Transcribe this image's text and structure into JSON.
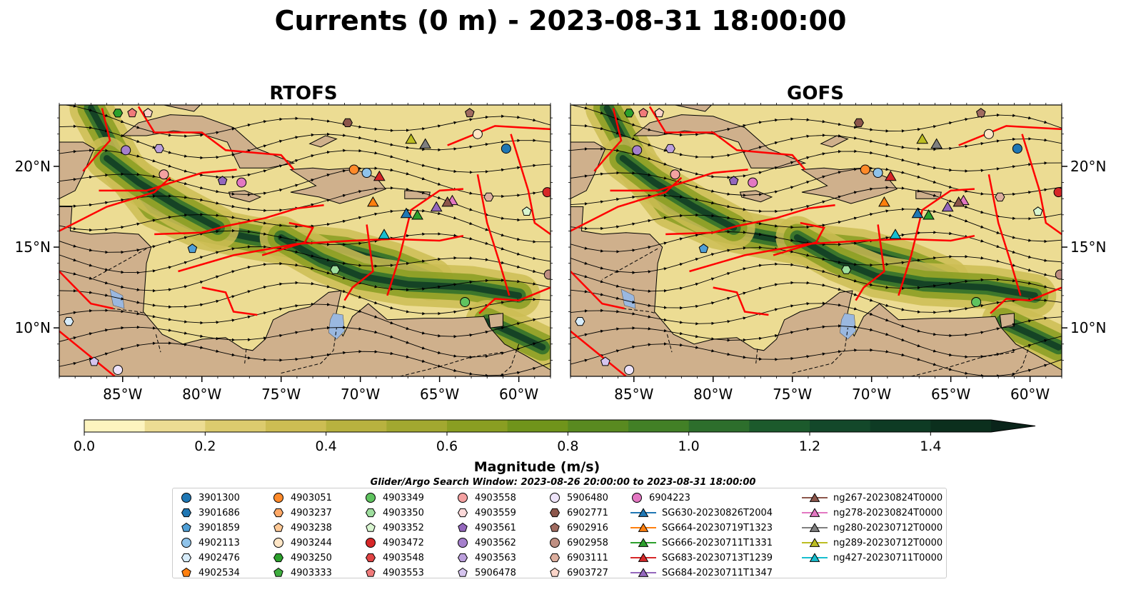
{
  "figure": {
    "title": "Currents (0 m) - 2023-08-31 18:00:00",
    "search_window": "Glider/Argo Search Window: 2023-08-26 20:00:00 to 2023-08-31 18:00:00"
  },
  "colors": {
    "land": "#cfb08c",
    "lake": "#9ab8e0",
    "eez": "#ff0000",
    "colormap": [
      "#fdf4bf",
      "#ecdc93",
      "#dccb6e",
      "#cdbd53",
      "#b8b23f",
      "#a2a830",
      "#8a9e22",
      "#70941b",
      "#598a20",
      "#428026",
      "#2d6e2c",
      "#1c5a2c",
      "#13482a",
      "#0e3b24",
      "#0b2f1d",
      "#0a241a"
    ]
  },
  "chart_data": {
    "type": "heatmap",
    "variable": "Magnitude (m/s)",
    "depth_m": 0,
    "time": "2023-08-31 18:00:00",
    "panels": [
      {
        "name": "RTOFS",
        "lon_range": [
          -89,
          -58
        ],
        "lat_range": [
          7,
          23.8
        ]
      },
      {
        "name": "GOFS",
        "lon_range": [
          -89,
          -58
        ],
        "lat_range": [
          7,
          23.8
        ]
      }
    ],
    "x_ticks": [
      "85°W",
      "80°W",
      "75°W",
      "70°W",
      "65°W",
      "60°W"
    ],
    "x_tick_values": [
      -85,
      -80,
      -75,
      -70,
      -65,
      -60
    ],
    "y_ticks": [
      "10°N",
      "15°N",
      "20°N"
    ],
    "y_tick_values": [
      10,
      15,
      20
    ],
    "colorbar": {
      "label": "Magnitude (m/s)",
      "range": [
        0,
        1.5
      ],
      "step": 0.1,
      "extend": "max",
      "tick_values": [
        0.0,
        0.2,
        0.4,
        0.6,
        0.8,
        1.0,
        1.2,
        1.4
      ],
      "tick_labels": [
        "0.0",
        "0.2",
        "0.4",
        "0.6",
        "0.8",
        "1.0",
        "1.2",
        "1.4"
      ]
    },
    "legend": {
      "columns": [
        [
          {
            "label": "3901300",
            "marker": "circle",
            "color": "#1f77b4"
          },
          {
            "label": "3901686",
            "marker": "hexagon",
            "color": "#1f77b4"
          },
          {
            "label": "3901859",
            "marker": "pentagon",
            "color": "#4f9fd6"
          },
          {
            "label": "4902113",
            "marker": "circle",
            "color": "#8fc3ea"
          },
          {
            "label": "4902476",
            "marker": "hexagon",
            "color": "#d7ecfa"
          },
          {
            "label": "4902534",
            "marker": "pentagon",
            "color": "#ff7f0e"
          }
        ],
        [
          {
            "label": "4903051",
            "marker": "circle",
            "color": "#ff8a2a"
          },
          {
            "label": "4903237",
            "marker": "hexagon",
            "color": "#ffa866"
          },
          {
            "label": "4903238",
            "marker": "pentagon",
            "color": "#ffc996"
          },
          {
            "label": "4903244",
            "marker": "circle",
            "color": "#ffe6c6"
          },
          {
            "label": "4903250",
            "marker": "hexagon",
            "color": "#2ca02c"
          },
          {
            "label": "4903333",
            "marker": "pentagon",
            "color": "#3fae3f"
          }
        ],
        [
          {
            "label": "4903349",
            "marker": "circle",
            "color": "#5fc35f"
          },
          {
            "label": "4903350",
            "marker": "hexagon",
            "color": "#9ede9e"
          },
          {
            "label": "4903352",
            "marker": "pentagon",
            "color": "#d8f5d0"
          },
          {
            "label": "4903472",
            "marker": "circle",
            "color": "#d62728"
          },
          {
            "label": "4903548",
            "marker": "hexagon",
            "color": "#e04444"
          },
          {
            "label": "4903553",
            "marker": "pentagon",
            "color": "#f07a7a"
          }
        ],
        [
          {
            "label": "4903558",
            "marker": "circle",
            "color": "#f4a1a1"
          },
          {
            "label": "4903559",
            "marker": "hexagon",
            "color": "#fcd9d9"
          },
          {
            "label": "4903561",
            "marker": "pentagon",
            "color": "#9467bd"
          },
          {
            "label": "4903562",
            "marker": "circle",
            "color": "#a57fcc"
          },
          {
            "label": "4903563",
            "marker": "hexagon",
            "color": "#bb9fdc"
          },
          {
            "label": "5906478",
            "marker": "pentagon",
            "color": "#d5c4ee"
          }
        ],
        [
          {
            "label": "5906480",
            "marker": "circle",
            "color": "#eee4fa"
          },
          {
            "label": "6902771",
            "marker": "hexagon",
            "color": "#8c564b"
          },
          {
            "label": "6902916",
            "marker": "pentagon",
            "color": "#a06b60"
          },
          {
            "label": "6902958",
            "marker": "circle",
            "color": "#bf8f82"
          },
          {
            "label": "6903111",
            "marker": "hexagon",
            "color": "#dcae9e"
          },
          {
            "label": "6903727",
            "marker": "pentagon",
            "color": "#fad4c8"
          }
        ],
        [
          {
            "label": "6904223",
            "marker": "circle",
            "color": "#e377c2"
          },
          {
            "label": "SG630-20230826T2004",
            "marker": "triangle",
            "color": "#1f77b4"
          },
          {
            "label": "SG664-20230719T1323",
            "marker": "triangle",
            "color": "#ff7f0e"
          },
          {
            "label": "SG666-20230711T1331",
            "marker": "triangle",
            "color": "#2ca02c"
          },
          {
            "label": "SG683-20230713T1239",
            "marker": "triangle",
            "color": "#d62728"
          },
          {
            "label": "SG684-20230711T1347",
            "marker": "triangle",
            "color": "#9467bd"
          }
        ],
        [
          {
            "label": "ng267-20230824T0000",
            "marker": "triangle",
            "color": "#8c564b"
          },
          {
            "label": "ng278-20230824T0000",
            "marker": "triangle",
            "color": "#e377c2"
          },
          {
            "label": "ng280-20230712T0000",
            "marker": "triangle",
            "color": "#7f7f7f"
          },
          {
            "label": "ng289-20230712T0000",
            "marker": "triangle",
            "color": "#bcbd22"
          },
          {
            "label": "ng427-20230711T0000",
            "marker": "triangle",
            "color": "#17becf"
          }
        ]
      ]
    },
    "glider_positions": [
      {
        "label": "SG630-20230826T2004",
        "lon": -67.1,
        "lat": 17.1
      },
      {
        "label": "SG664-20230719T1323",
        "lon": -69.2,
        "lat": 17.8
      },
      {
        "label": "SG666-20230711T1331",
        "lon": -66.4,
        "lat": 17.0
      },
      {
        "label": "SG684-20230711T1347",
        "lon": -65.2,
        "lat": 17.5
      },
      {
        "label": "ng278-20230824T0000",
        "lon": -64.2,
        "lat": 17.9
      },
      {
        "label": "ng267-20230824T0000",
        "lon": -64.5,
        "lat": 17.8
      },
      {
        "label": "ng280-20230712T0000",
        "lon": -65.9,
        "lat": 21.4
      },
      {
        "label": "ng289-20230712T0000",
        "lon": -66.8,
        "lat": 21.7
      },
      {
        "label": "ng427-20230711T0000",
        "lon": -68.5,
        "lat": 15.8
      },
      {
        "label": "SG683-20230713T1239",
        "lon": -68.8,
        "lat": 19.4
      }
    ],
    "float_positions": [
      {
        "label": "3901300",
        "lon": -60.8,
        "lat": 21.1
      },
      {
        "label": "3901859",
        "lon": -80.6,
        "lat": 14.9
      },
      {
        "label": "4902113",
        "lon": -69.6,
        "lat": 19.6
      },
      {
        "label": "4903051",
        "lon": -70.4,
        "lat": 19.8
      },
      {
        "label": "4903244",
        "lon": -62.6,
        "lat": 22.0
      },
      {
        "label": "4903250",
        "lon": -85.3,
        "lat": 23.3
      },
      {
        "label": "4903349",
        "lon": -63.4,
        "lat": 11.6
      },
      {
        "label": "4903350",
        "lon": -71.6,
        "lat": 13.6
      },
      {
        "label": "4903352",
        "lon": -59.5,
        "lat": 17.2
      },
      {
        "label": "4903553",
        "lon": -84.4,
        "lat": 23.3
      },
      {
        "label": "4903561",
        "lon": -78.7,
        "lat": 19.1
      },
      {
        "label": "4903562",
        "lon": -84.8,
        "lat": 21.0
      },
      {
        "label": "4903563",
        "lon": -82.7,
        "lat": 21.1
      },
      {
        "label": "4903558",
        "lon": -82.4,
        "lat": 19.5
      },
      {
        "label": "5906478",
        "lon": -86.8,
        "lat": 7.9
      },
      {
        "label": "5906480",
        "lon": -85.3,
        "lat": 7.4
      },
      {
        "label": "6902771",
        "lon": -70.8,
        "lat": 22.7
      },
      {
        "label": "6902916",
        "lon": -63.1,
        "lat": 23.3
      },
      {
        "label": "6902958",
        "lon": -58.1,
        "lat": 13.3
      },
      {
        "label": "6903111",
        "lon": -61.9,
        "lat": 18.1
      },
      {
        "label": "6903727",
        "lon": -83.4,
        "lat": 23.3
      },
      {
        "label": "6904223",
        "lon": -77.5,
        "lat": 19.0
      },
      {
        "label": "4903472",
        "lon": -58.2,
        "lat": 18.4
      },
      {
        "label": "4902476",
        "lon": -88.4,
        "lat": 10.4
      }
    ]
  }
}
